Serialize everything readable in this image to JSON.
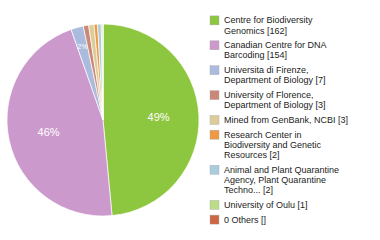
{
  "chart_data": {
    "type": "pie",
    "categories": [
      "Centre for Biodiversity\nGenomics [162]",
      "Canadian Centre for DNA\nBarcoding [154]",
      "Universita di Firenze,\nDepartment of Biology [7]",
      "University of Florence,\nDepartment of Biology [3]",
      "Mined from GenBank, NCBI [3]",
      "Research Center in\nBiodiversity and Genetic\nResources [2]",
      "Animal and Plant Quarantine\nAgency, Plant Quarantine\nTechno... [2]",
      "University of Oulu [1]",
      "0 Others []"
    ],
    "values": [
      48.5028,
      46.1076,
      2.0958,
      0.8982,
      0.8982,
      0.5988,
      0.5988,
      0.2994,
      0.0003
    ],
    "value_labels": [
      "49%",
      "46%",
      "2%",
      null,
      null,
      null,
      null,
      null,
      null
    ],
    "colors": [
      "#8dc63f",
      "#cc99cc",
      "#aabbdd",
      "#cc8877",
      "#ddcc99",
      "#ee9944",
      "#aaccdd",
      "#bbdd88",
      "#cc6644"
    ],
    "data_labels": true,
    "legend": "right"
  }
}
